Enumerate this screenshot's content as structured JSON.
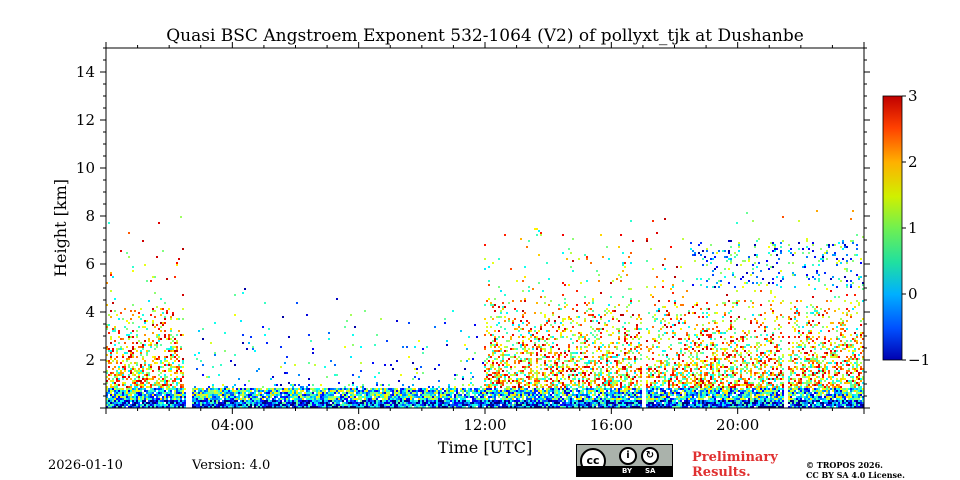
{
  "chart_data": {
    "type": "heatmap",
    "title": "Quasi BSC Angstroem Exponent 532-1064 (V2) of pollyxt_tjk at Dushanbe",
    "xlabel": "Time [UTC]",
    "ylabel": "Height [km]",
    "xlim_hours": [
      0,
      24
    ],
    "ylim_km": [
      0,
      15
    ],
    "x_ticks": [
      {
        "hour": 4,
        "label": "04:00"
      },
      {
        "hour": 8,
        "label": "08:00"
      },
      {
        "hour": 12,
        "label": "12:00"
      },
      {
        "hour": 16,
        "label": "16:00"
      },
      {
        "hour": 20,
        "label": "20:00"
      }
    ],
    "y_ticks": [
      {
        "km": 2,
        "label": "2"
      },
      {
        "km": 4,
        "label": "4"
      },
      {
        "km": 6,
        "label": "6"
      },
      {
        "km": 8,
        "label": "8"
      },
      {
        "km": 10,
        "label": "10"
      },
      {
        "km": 12,
        "label": "12"
      },
      {
        "km": 14,
        "label": "14"
      }
    ],
    "colorbar": {
      "min": -1,
      "max": 3,
      "colormap": "jet",
      "ticks": [
        {
          "value": 3,
          "label": "3"
        },
        {
          "value": 2,
          "label": "2"
        },
        {
          "value": 1,
          "label": "1"
        },
        {
          "value": 0,
          "label": "0"
        },
        {
          "value": -1,
          "label": "−1"
        }
      ]
    },
    "data_gaps_hours": [
      [
        2.55,
        2.7
      ],
      [
        16.95,
        17.1
      ],
      [
        21.45,
        21.6
      ]
    ],
    "signal_regions": [
      {
        "t_start": 0,
        "t_end": 2.5,
        "top_km": 4.2,
        "value": 1.6
      },
      {
        "t_start": 2.7,
        "t_end": 12,
        "top_km": 1.0,
        "value": 0.3
      },
      {
        "t_start": 12,
        "t_end": 24,
        "top_km": 4.5,
        "value": 1.6
      },
      {
        "t_start": 18.5,
        "t_end": 24,
        "top_km": 7.0,
        "value": 0.3,
        "note": "sparse cloud layer 5-7 km"
      }
    ]
  },
  "footer": {
    "date": "2026-01-10",
    "version": "Version: 4.0",
    "preliminary_line1": "Preliminary",
    "preliminary_line2": "Results.",
    "license_line1": "© TROPOS 2026.",
    "license_line2": "CC BY SA 4.0 License.",
    "badge_cc": "cc",
    "badge_by": "BY",
    "badge_sa": "SA"
  },
  "colors": {
    "preliminary": "#e03030",
    "badge_bg": "#aab2ab"
  }
}
